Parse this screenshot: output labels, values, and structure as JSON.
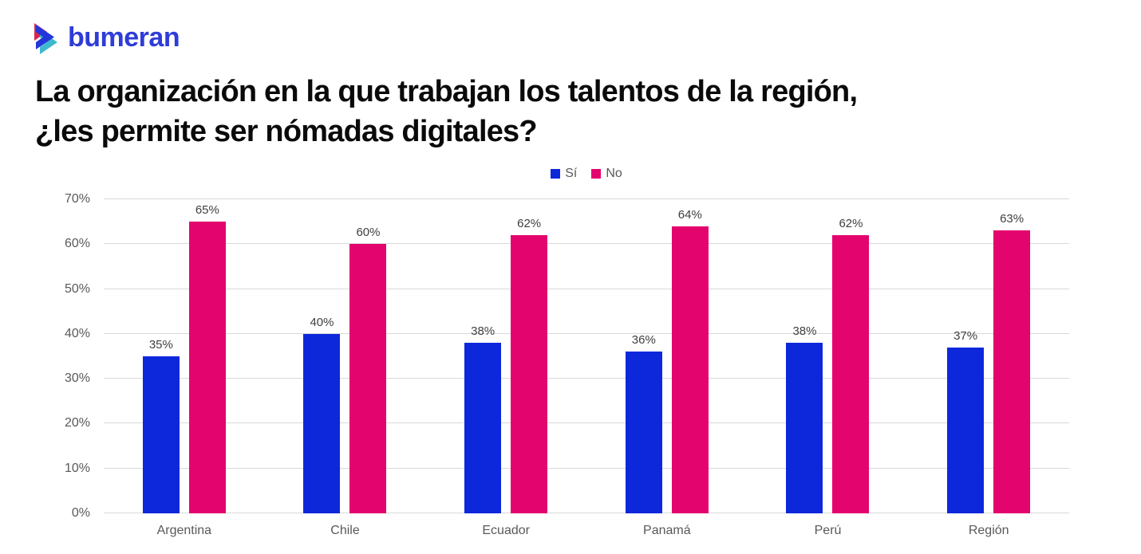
{
  "brand": {
    "logo_text": "bumeran",
    "logo_color": "#2E3CD9",
    "icon_colors": {
      "front": "#2336D9",
      "back": "#3FB9CE",
      "accent": "#D8274E"
    }
  },
  "title": {
    "line1": "La organización en la que trabajan los talentos de la región,",
    "line2": "¿les permite ser nómadas digitales?"
  },
  "chart_data": {
    "type": "bar",
    "title": "La organización en la que trabajan los talentos de la región, ¿les permite ser nómadas digitales?",
    "categories": [
      "Argentina",
      "Chile",
      "Ecuador",
      "Panamá",
      "Perú",
      "Región"
    ],
    "series": [
      {
        "name": "Sí",
        "color": "#0D28DB",
        "values": [
          35,
          40,
          38,
          36,
          38,
          37
        ]
      },
      {
        "name": "No",
        "color": "#E4046E",
        "values": [
          65,
          60,
          62,
          64,
          62,
          63
        ]
      }
    ],
    "value_suffix": "%",
    "xlabel": "",
    "ylabel": "",
    "ylim": [
      0,
      70
    ],
    "y_ticks": [
      "0%",
      "10%",
      "20%",
      "30%",
      "40%",
      "50%",
      "60%",
      "70%"
    ],
    "grid": true,
    "legend_position": "top-center",
    "data_labels": true,
    "colors": {
      "gridline": "#D9D9D9",
      "axis_text": "#595959",
      "data_label_text": "#404040"
    }
  }
}
